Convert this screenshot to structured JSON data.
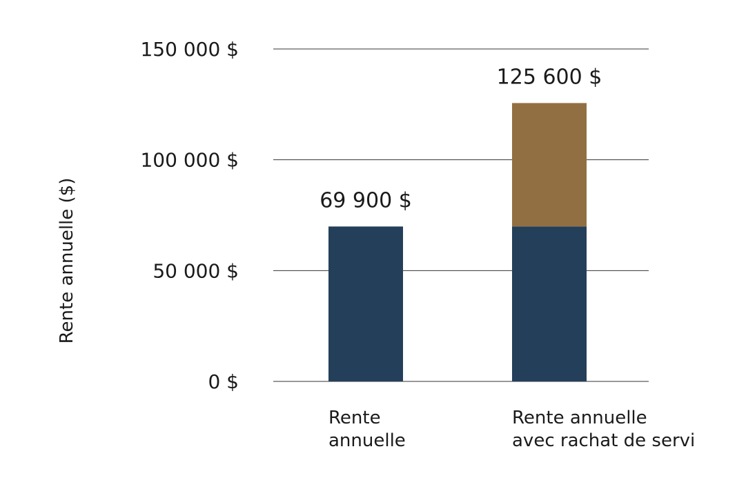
{
  "chart_data": {
    "type": "bar",
    "stacked": true,
    "categories": [
      [
        "Rente",
        "annuelle"
      ],
      [
        "Rente annuelle",
        "avec rachat de servi"
      ]
    ],
    "series": [
      {
        "values": [
          69900,
          69900
        ],
        "color": "#243f5a"
      },
      {
        "values": [
          0,
          55700
        ],
        "color": "#926f42"
      }
    ],
    "totals_labels": [
      "69 900 $",
      "125 600 $"
    ],
    "ylabel": "Rente annuelle ($)",
    "ylim": [
      0,
      150000
    ],
    "yticks": [
      0,
      50000,
      100000,
      150000
    ],
    "ytick_labels": [
      "0 $",
      "50 000 $",
      "100 000 $",
      "150 000 $"
    ],
    "grid": true
  }
}
